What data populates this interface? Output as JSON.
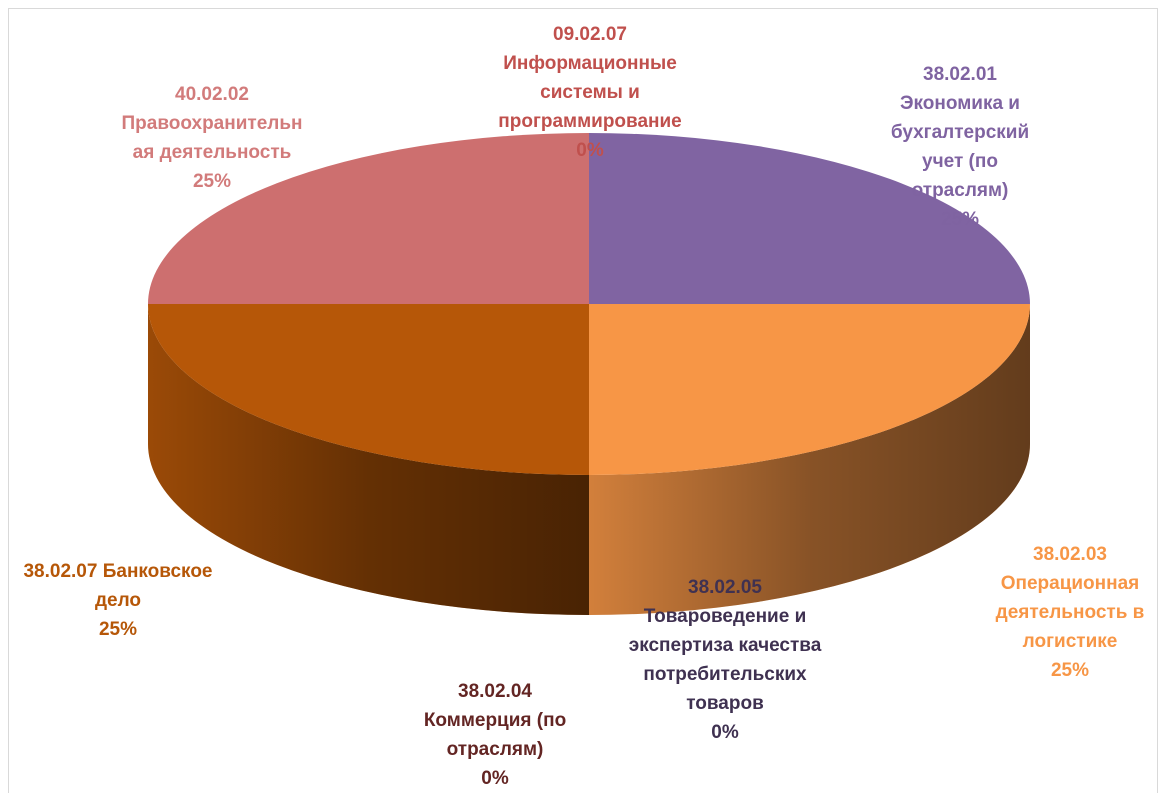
{
  "chart_data": {
    "type": "pie3d",
    "categories": [
      "38.02.01 Экономика и бухгалтерский учет (по отраслям)",
      "38.02.03 Операционная деятельность в логистике",
      "38.02.05 Товароведение и экспертиза качества потребительских товаров",
      "38.02.04 Коммерция (по отраслям)",
      "38.02.07 Банковское дело",
      "40.02.02 Правоохранительная деятельность",
      "09.02.07 Информационные системы и программирование"
    ],
    "values": [
      25,
      25,
      0,
      0,
      25,
      25,
      0
    ],
    "value_labels": [
      "25%",
      "25%",
      "0%",
      "0%",
      "25%",
      "25%",
      "0%"
    ],
    "colors": [
      "#8064a2",
      "#f79646",
      "#4f3a6e",
      "#7b2c2c",
      "#b65708",
      "#cd6f6f",
      "#c0504d"
    ],
    "label_colors": [
      "#7f63a1",
      "#f79646",
      "#3f3151",
      "#632523",
      "#b65708",
      "#d27b7b",
      "#c0504d"
    ]
  }
}
